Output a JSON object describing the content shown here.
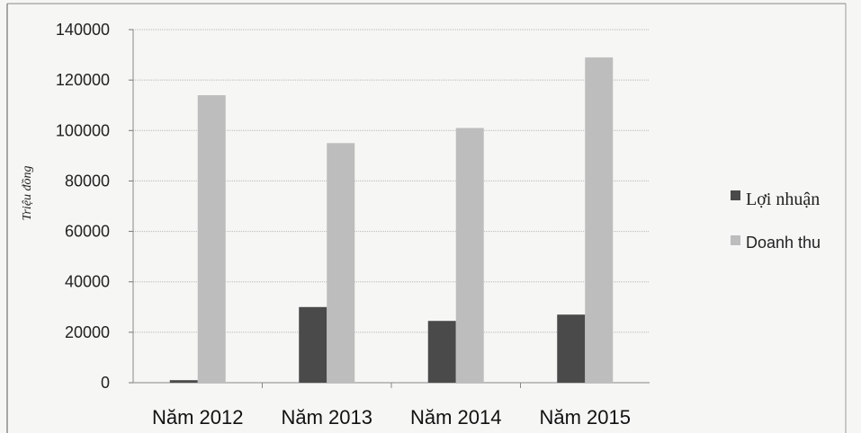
{
  "chart_data": {
    "type": "bar",
    "categories": [
      "Năm 2012",
      "Năm 2013",
      "Năm 2014",
      "Năm 2015"
    ],
    "series": [
      {
        "name": "Lợi nhuận",
        "values": [
          1000,
          30000,
          24500,
          27000
        ],
        "color": "#4a4a4a"
      },
      {
        "name": "Doanh thu",
        "values": [
          114000,
          95000,
          101000,
          129000
        ],
        "color": "#bdbdbd"
      }
    ],
    "title": "",
    "xlabel": "",
    "ylabel": "Triệu đồng",
    "ylim": [
      0,
      140000
    ],
    "yticks": [
      "0",
      "20000",
      "40000",
      "60000",
      "80000",
      "100000",
      "120000",
      "140000"
    ],
    "grid": true,
    "legend_position": "right"
  }
}
